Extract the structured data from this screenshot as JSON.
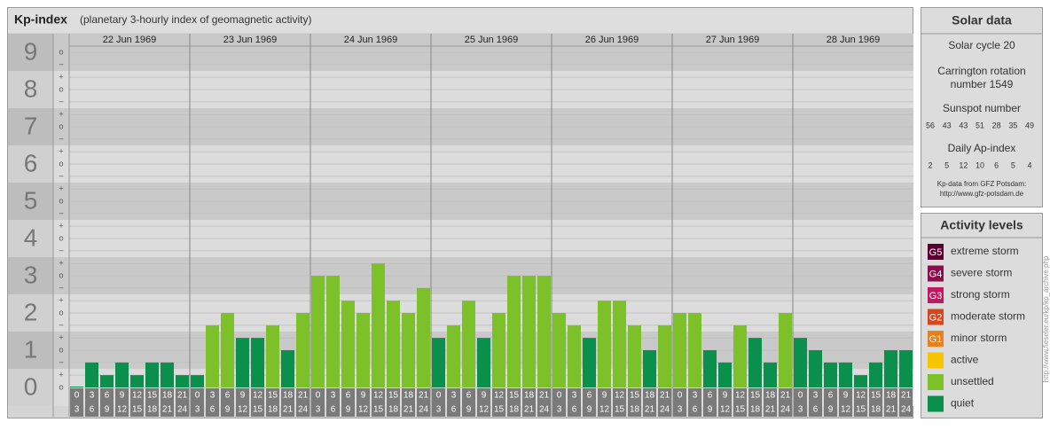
{
  "chart_data": {
    "type": "bar",
    "title": "Kp-index",
    "subtitle": "(planetary 3-hourly index of geomagnetic activity)",
    "days": [
      "22 Jun 1969",
      "23 Jun 1969",
      "24 Jun 1969",
      "25 Jun 1969",
      "26 Jun 1969",
      "27 Jun 1969",
      "28 Jun 1969"
    ],
    "hour_ranges": [
      [
        0,
        3
      ],
      [
        3,
        6
      ],
      [
        6,
        9
      ],
      [
        9,
        12
      ],
      [
        12,
        15
      ],
      [
        15,
        18
      ],
      [
        18,
        21
      ],
      [
        21,
        24
      ]
    ],
    "values": [
      0,
      0.67,
      0.33,
      0.67,
      0.33,
      0.67,
      0.67,
      0.33,
      0.33,
      1.67,
      2,
      1.33,
      1.33,
      1.67,
      1,
      2,
      3,
      3,
      2.33,
      2,
      3.33,
      2.33,
      2,
      2.67,
      1.33,
      1.67,
      2.33,
      1.33,
      2,
      3,
      3,
      3,
      2,
      1.67,
      1.33,
      2.33,
      2.33,
      1.67,
      1,
      1.67,
      2,
      2,
      1,
      0.67,
      1.67,
      1.33,
      0.67,
      2,
      1.33,
      1,
      0.67,
      0.67,
      0.33,
      0.67,
      1,
      1
    ],
    "colors": [
      "#0b8f4c",
      "#0b8f4c",
      "#0b8f4c",
      "#0b8f4c",
      "#0b8f4c",
      "#0b8f4c",
      "#0b8f4c",
      "#0b8f4c",
      "#0b8f4c",
      "#7cc12a",
      "#7cc12a",
      "#0b8f4c",
      "#0b8f4c",
      "#7cc12a",
      "#0b8f4c",
      "#7cc12a",
      "#7cc12a",
      "#7cc12a",
      "#7cc12a",
      "#7cc12a",
      "#7cc12a",
      "#7cc12a",
      "#7cc12a",
      "#7cc12a",
      "#0b8f4c",
      "#7cc12a",
      "#7cc12a",
      "#0b8f4c",
      "#7cc12a",
      "#7cc12a",
      "#7cc12a",
      "#7cc12a",
      "#7cc12a",
      "#7cc12a",
      "#0b8f4c",
      "#7cc12a",
      "#7cc12a",
      "#7cc12a",
      "#0b8f4c",
      "#7cc12a",
      "#7cc12a",
      "#7cc12a",
      "#0b8f4c",
      "#0b8f4c",
      "#7cc12a",
      "#0b8f4c",
      "#0b8f4c",
      "#7cc12a",
      "#0b8f4c",
      "#0b8f4c",
      "#0b8f4c",
      "#0b8f4c",
      "#0b8f4c",
      "#0b8f4c",
      "#0b8f4c",
      "#0b8f4c"
    ],
    "ylim": [
      0,
      9.5
    ],
    "yticks": [
      0,
      1,
      2,
      3,
      4,
      5,
      6,
      7,
      8,
      9
    ],
    "minor_ticks": [
      {
        "value": 0,
        "label": "o"
      },
      {
        "value": 0.33,
        "label": "+"
      },
      {
        "value": 0.67,
        "label": "–"
      },
      {
        "value": 1,
        "label": "o"
      },
      {
        "value": 1.33,
        "label": "+"
      },
      {
        "value": 1.67,
        "label": "–"
      },
      {
        "value": 2,
        "label": "o"
      },
      {
        "value": 2.33,
        "label": "+"
      },
      {
        "value": 2.67,
        "label": "–"
      },
      {
        "value": 3,
        "label": "o"
      },
      {
        "value": 3.33,
        "label": "+"
      },
      {
        "value": 3.67,
        "label": "–"
      },
      {
        "value": 4,
        "label": "o"
      },
      {
        "value": 4.33,
        "label": "+"
      },
      {
        "value": 4.67,
        "label": "–"
      },
      {
        "value": 5,
        "label": "o"
      },
      {
        "value": 5.33,
        "label": "+"
      },
      {
        "value": 5.67,
        "label": "–"
      },
      {
        "value": 6,
        "label": "o"
      },
      {
        "value": 6.33,
        "label": "+"
      },
      {
        "value": 6.67,
        "label": "–"
      },
      {
        "value": 7,
        "label": "o"
      },
      {
        "value": 7.33,
        "label": "+"
      },
      {
        "value": 7.67,
        "label": "–"
      },
      {
        "value": 8,
        "label": "o"
      },
      {
        "value": 8.33,
        "label": "+"
      },
      {
        "value": 8.67,
        "label": "–"
      },
      {
        "value": 9,
        "label": "o"
      }
    ],
    "grid": true,
    "solar_data": {
      "title": "Solar data",
      "cycle": "Solar cycle 20",
      "carrington": [
        "Carrington rotation",
        "number 1549"
      ],
      "sunspot_title": "Sunspot number",
      "sunspot": [
        56,
        43,
        43,
        51,
        28,
        35,
        49
      ],
      "ap_title": "Daily Ap-index",
      "ap": [
        2,
        5,
        12,
        10,
        6,
        5,
        4
      ],
      "source": [
        "Kp-data from GFZ Potsdam:",
        "http://www.gfz-potsdam.de"
      ]
    },
    "activity_levels": {
      "title": "Activity levels",
      "levels": [
        {
          "badge": "G5",
          "name": "extreme storm",
          "color": "#5a0030"
        },
        {
          "badge": "G4",
          "name": "severe storm",
          "color": "#8a0e4c"
        },
        {
          "badge": "G3",
          "name": "strong storm",
          "color": "#c2185f"
        },
        {
          "badge": "G2",
          "name": "moderate storm",
          "color": "#d9461c"
        },
        {
          "badge": "G1",
          "name": "minor storm",
          "color": "#e8801e"
        },
        {
          "name": "active",
          "color": "#f7c400"
        },
        {
          "name": "unsettled",
          "color": "#7cc12a"
        },
        {
          "name": "quiet",
          "color": "#0b8f4c"
        }
      ]
    },
    "credit": "http://www.fieseler.eu/kp/kp_archive.php"
  }
}
